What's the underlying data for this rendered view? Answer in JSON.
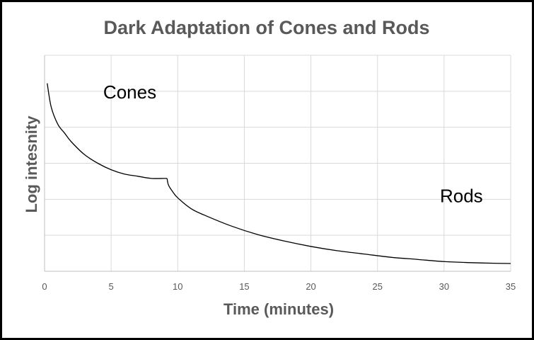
{
  "chart_data": {
    "type": "line",
    "title": "Dark Adaptation of Cones and Rods",
    "xlabel": "Time (minutes)",
    "ylabel": "Log intesnity",
    "xlim": [
      0,
      35
    ],
    "ylim": [
      0,
      1
    ],
    "x_ticks": [
      "0",
      "5",
      "10",
      "15",
      "20",
      "25",
      "30",
      "35"
    ],
    "grid": true,
    "series": [
      {
        "x": [
          0.2,
          0.5,
          1,
          1.5,
          2,
          3,
          4,
          5,
          6,
          7,
          8,
          9,
          9.2
        ],
        "y": [
          0.87,
          0.76,
          0.68,
          0.64,
          0.6,
          0.54,
          0.5,
          0.47,
          0.45,
          0.44,
          0.43,
          0.43,
          0.43
        ],
        "color": "#000000"
      },
      {
        "x": [
          9.2,
          9.3,
          9.6,
          10,
          11,
          12,
          14,
          16,
          18,
          20,
          22,
          24,
          26,
          28,
          30,
          32,
          34,
          35
        ],
        "y": [
          0.43,
          0.4,
          0.37,
          0.34,
          0.29,
          0.26,
          0.21,
          0.17,
          0.14,
          0.115,
          0.095,
          0.08,
          0.065,
          0.055,
          0.045,
          0.04,
          0.037,
          0.036
        ],
        "color": "#000000"
      }
    ],
    "annotations": [
      {
        "text": "Cones",
        "x": 6.4,
        "y": 0.8
      },
      {
        "text": "Rods",
        "x": 31.3,
        "y": 0.32
      }
    ]
  }
}
